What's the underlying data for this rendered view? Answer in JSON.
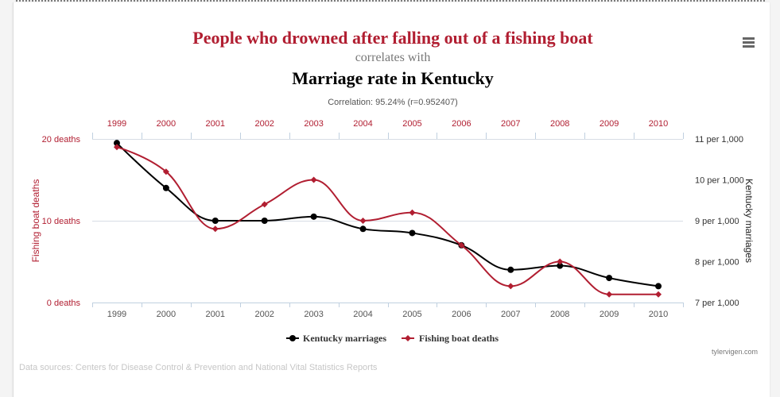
{
  "menu": {
    "icon": "menu-icon"
  },
  "chart_data": {
    "type": "line",
    "title": "People who drowned after falling out of a fishing boat",
    "subtitle": "correlates with",
    "title_secondary": "Marriage rate in Kentucky",
    "correlation_label": "Correlation: 95.24% (r=0.952407)",
    "categories": [
      "1999",
      "2000",
      "2001",
      "2002",
      "2003",
      "2004",
      "2005",
      "2006",
      "2007",
      "2008",
      "2009",
      "2010"
    ],
    "y_axis_left": {
      "label": "Fishing boat deaths",
      "range": [
        0,
        20
      ],
      "ticks": [
        {
          "value": 20,
          "label": "20 deaths"
        },
        {
          "value": 10,
          "label": "10 deaths"
        },
        {
          "value": 0,
          "label": "0 deaths"
        }
      ]
    },
    "y_axis_right": {
      "label": "Kentucky marriages",
      "range": [
        7,
        11
      ],
      "ticks": [
        {
          "value": 11,
          "label": "11 per 1,000"
        },
        {
          "value": 10,
          "label": "10 per 1,000"
        },
        {
          "value": 9,
          "label": "9 per 1,000"
        },
        {
          "value": 8,
          "label": "8 per 1,000"
        },
        {
          "value": 7,
          "label": "7 per 1,000"
        }
      ]
    },
    "series": [
      {
        "name": "Kentucky marriages",
        "y_axis": "right",
        "color": "#000000",
        "marker": "circle",
        "values": [
          10.9,
          9.8,
          9.0,
          9.0,
          9.1,
          8.8,
          8.7,
          8.4,
          7.8,
          7.9,
          7.6,
          7.4
        ]
      },
      {
        "name": "Fishing boat deaths",
        "y_axis": "left",
        "color": "#b11e31",
        "marker": "diamond",
        "values": [
          19,
          16,
          9,
          12,
          15,
          10,
          11,
          7,
          2,
          5,
          1,
          1
        ]
      }
    ],
    "grid": true,
    "legend": "bottom-center",
    "credits": "tylervigen.com"
  },
  "footer": {
    "sources": "Data sources: Centers for Disease Control & Prevention and National Vital Statistics Reports"
  }
}
